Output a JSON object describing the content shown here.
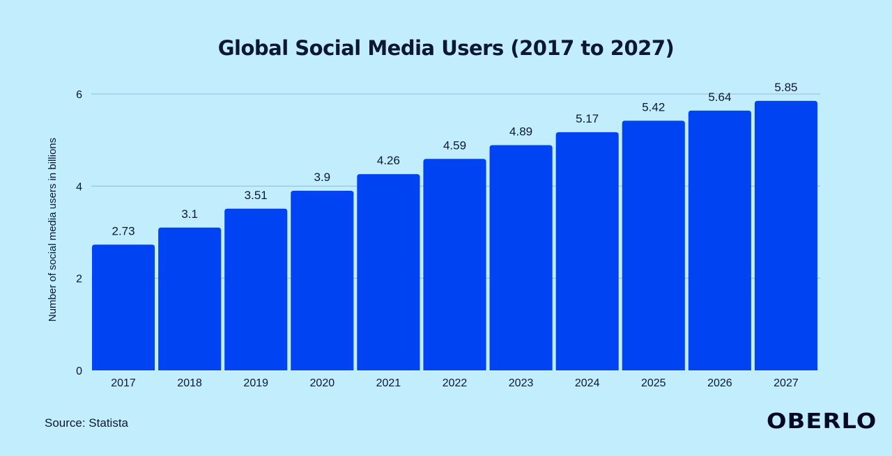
{
  "chart_data": {
    "type": "bar",
    "title": "Global Social Media Users (2017 to 2027)",
    "xlabel": "",
    "ylabel": "Number of social media users in billions",
    "categories": [
      "2017",
      "2018",
      "2019",
      "2020",
      "2021",
      "2022",
      "2023",
      "2024",
      "2025",
      "2026",
      "2027"
    ],
    "values": [
      2.73,
      3.1,
      3.51,
      3.9,
      4.26,
      4.59,
      4.89,
      5.17,
      5.42,
      5.64,
      5.85
    ],
    "value_labels": [
      "2.73",
      "3.1",
      "3.51",
      "3.9",
      "4.26",
      "4.59",
      "4.89",
      "5.17",
      "5.42",
      "5.64",
      "5.85"
    ],
    "ylim": [
      0,
      6
    ],
    "yticks": [
      "0",
      "2",
      "4",
      "6"
    ],
    "grid": true,
    "legend": "none",
    "colors": {
      "bar": "#0043f2",
      "background": "#c1edfc",
      "grid": "#8fbdd2",
      "text": "#0b1733"
    }
  },
  "source": "Source: Statista",
  "logo": "OBERLO"
}
